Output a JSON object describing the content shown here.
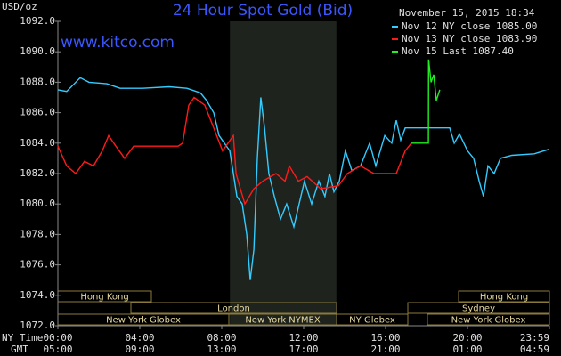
{
  "chart_data": {
    "type": "line",
    "title": "24 Hour Spot Gold (Bid)",
    "subtitle": "www.kitco.com",
    "timestamp": "November 15, 2015 18:34",
    "y_label": "USD/oz",
    "x_row_labels": [
      "NY Time",
      "GMT"
    ],
    "xlim": [
      0,
      24
    ],
    "ylim": [
      1072,
      1092
    ],
    "grid": false,
    "xticks": [
      {
        "value": 0,
        "label": "00:00"
      },
      {
        "value": 4,
        "label": "04:00"
      },
      {
        "value": 8,
        "label": "08:00"
      },
      {
        "value": 12,
        "label": "12:00"
      },
      {
        "value": 16,
        "label": "16:00"
      },
      {
        "value": 20,
        "label": "20:00"
      },
      {
        "value": 24,
        "label": "23:59"
      }
    ],
    "gmt_ticks": [
      {
        "value": 0,
        "label": "05:00"
      },
      {
        "value": 4,
        "label": "09:00"
      },
      {
        "value": 8,
        "label": "13:00"
      },
      {
        "value": 12,
        "label": "17:00"
      },
      {
        "value": 16,
        "label": "21:00"
      },
      {
        "value": 20,
        "label": "01:00"
      },
      {
        "value": 24,
        "label": "04:59"
      }
    ],
    "yticks": [
      {
        "value": 1072,
        "label": "1072.0"
      },
      {
        "value": 1074,
        "label": "1074.0"
      },
      {
        "value": 1076,
        "label": "1076.0"
      },
      {
        "value": 1078,
        "label": "1078.0"
      },
      {
        "value": 1080,
        "label": "1080.0"
      },
      {
        "value": 1082,
        "label": "1082.0"
      },
      {
        "value": 1084,
        "label": "1084.0"
      },
      {
        "value": 1086,
        "label": "1086.0"
      },
      {
        "value": 1088,
        "label": "1088.0"
      },
      {
        "value": 1090,
        "label": "1090.0"
      },
      {
        "value": 1092,
        "label": "1092.0"
      }
    ],
    "sessions": [
      "Hong Kong",
      "London",
      "New York Globex",
      "New York NYMEX",
      "NY Globex",
      "Hong Kong",
      "Sydney",
      "New York Globex"
    ],
    "series": [
      {
        "name": "Nov 12 NY close 1085.00",
        "color": "#33ccff",
        "x": [
          0,
          0.43,
          1.09,
          1.52,
          2.39,
          3.04,
          4.13,
          5.43,
          6.3,
          6.96,
          7.26,
          7.61,
          7.87,
          8.13,
          8.39,
          8.57,
          8.74,
          9.0,
          9.22,
          9.39,
          9.57,
          9.74,
          9.91,
          10.09,
          10.3,
          10.57,
          10.87,
          11.17,
          11.52,
          11.78,
          12.04,
          12.39,
          12.74,
          13.04,
          13.26,
          13.48,
          13.74,
          14.04,
          14.35,
          14.78,
          15.22,
          15.52,
          15.96,
          16.3,
          16.52,
          16.74,
          16.96,
          18.04,
          19.13,
          19.35,
          19.61,
          20.0,
          20.3,
          20.57,
          20.78,
          21.0,
          21.3,
          21.61,
          22.17,
          23.26,
          24
        ],
        "values": [
          1087.5,
          1087.4,
          1088.3,
          1088,
          1087.9,
          1087.6,
          1087.6,
          1087.7,
          1087.6,
          1087.3,
          1086.8,
          1086,
          1084.5,
          1084,
          1083.5,
          1082,
          1080.5,
          1080,
          1078,
          1075,
          1077,
          1083,
          1087,
          1085,
          1082,
          1080.5,
          1079,
          1080,
          1078.5,
          1080,
          1081.5,
          1080,
          1081.5,
          1080.5,
          1082,
          1080.8,
          1081.5,
          1083.5,
          1082.2,
          1082.5,
          1084,
          1082.5,
          1084.5,
          1084,
          1085.5,
          1084.2,
          1085,
          1085,
          1085,
          1084,
          1084.6,
          1083.5,
          1083,
          1081.5,
          1080.5,
          1082.5,
          1082,
          1083,
          1083.2,
          1083.3,
          1083.6
        ]
      },
      {
        "name": "Nov 13 NY close 1083.90",
        "color": "#ff1a1a",
        "x": [
          0,
          0.43,
          0.87,
          1.3,
          1.74,
          2.17,
          2.48,
          2.83,
          3.26,
          3.7,
          4.57,
          5.87,
          6.09,
          6.39,
          6.65,
          7.17,
          7.61,
          8.04,
          8.57,
          8.7,
          8.91,
          9.13,
          9.57,
          10.0,
          10.65,
          11.09,
          11.3,
          11.74,
          12.17,
          12.83,
          13.7,
          14.13,
          14.78,
          15.43,
          16.52,
          16.96,
          17.26
        ],
        "values": [
          1083.8,
          1082.5,
          1082,
          1082.8,
          1082.5,
          1083.5,
          1084.5,
          1083.8,
          1083,
          1083.8,
          1083.8,
          1083.8,
          1084,
          1086.5,
          1087,
          1086.5,
          1085,
          1083.5,
          1084.5,
          1082,
          1081,
          1080,
          1081,
          1081.5,
          1082,
          1081.5,
          1082.5,
          1081.5,
          1081.8,
          1081,
          1081.2,
          1082,
          1082.5,
          1082,
          1082,
          1083.5,
          1084
        ]
      },
      {
        "name": "Nov 15 Last 1087.40",
        "color": "#22ee22",
        "x": [
          17.26,
          18.09,
          18.1,
          18.22,
          18.35,
          18.48,
          18.65
        ],
        "values": [
          1084,
          1084,
          1089.5,
          1088,
          1088.5,
          1086.8,
          1087.5
        ]
      }
    ]
  }
}
